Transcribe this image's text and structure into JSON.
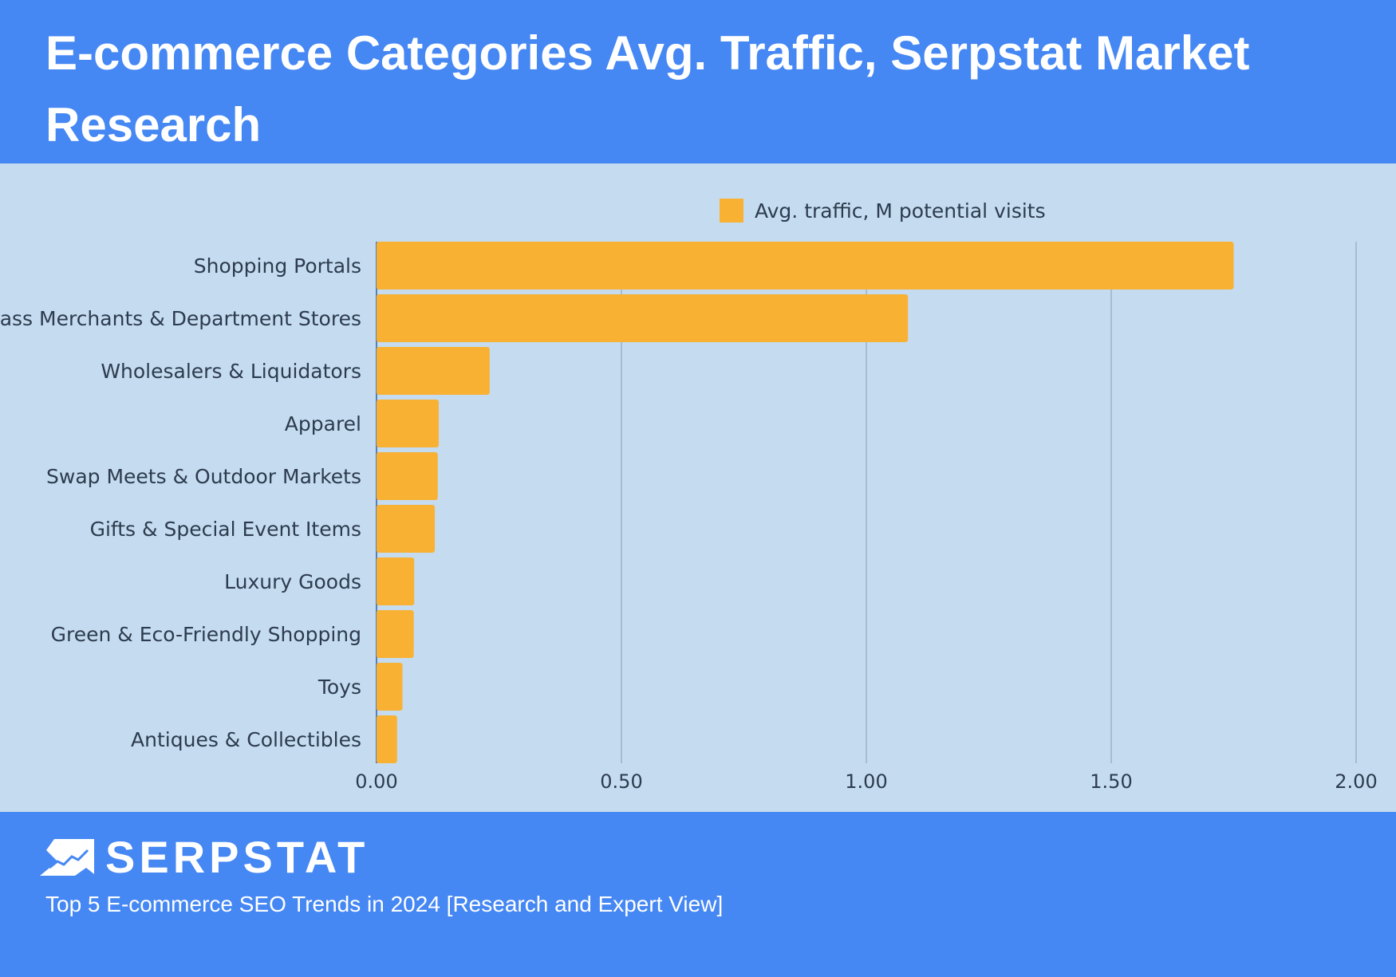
{
  "header": {
    "title": "E-commerce Categories Avg. Traffic, Serpstat Market Research"
  },
  "footer": {
    "logo_text": "SERPSTAT",
    "source": "Top 5 E-commerce SEO Trends in 2024 [Research and Expert View]"
  },
  "colors": {
    "header_bg": "#4587F3",
    "chart_bg": "#C5DCF0",
    "bar": "#F8B133"
  },
  "chart_data": {
    "type": "bar",
    "orientation": "horizontal",
    "categories": [
      "Shopping Portals",
      "Mass Merchants & Department Stores",
      "Wholesalers & Liquidators",
      "Apparel",
      "Swap Meets & Outdoor Markets",
      "Gifts & Special Event Items",
      "Luxury Goods",
      "Green & Eco-Friendly Shopping",
      "Toys",
      "Antiques & Collectibles"
    ],
    "series": [
      {
        "name": "Avg. traffic, M potential visits",
        "values": [
          1.75,
          1.085,
          0.231,
          0.127,
          0.125,
          0.119,
          0.077,
          0.076,
          0.053,
          0.042
        ]
      }
    ],
    "xlim": [
      0,
      2.0
    ],
    "xticks": [
      "0.00",
      "0.50",
      "1.00",
      "1.50",
      "2.00"
    ],
    "grid": true,
    "legend": "top-center"
  }
}
